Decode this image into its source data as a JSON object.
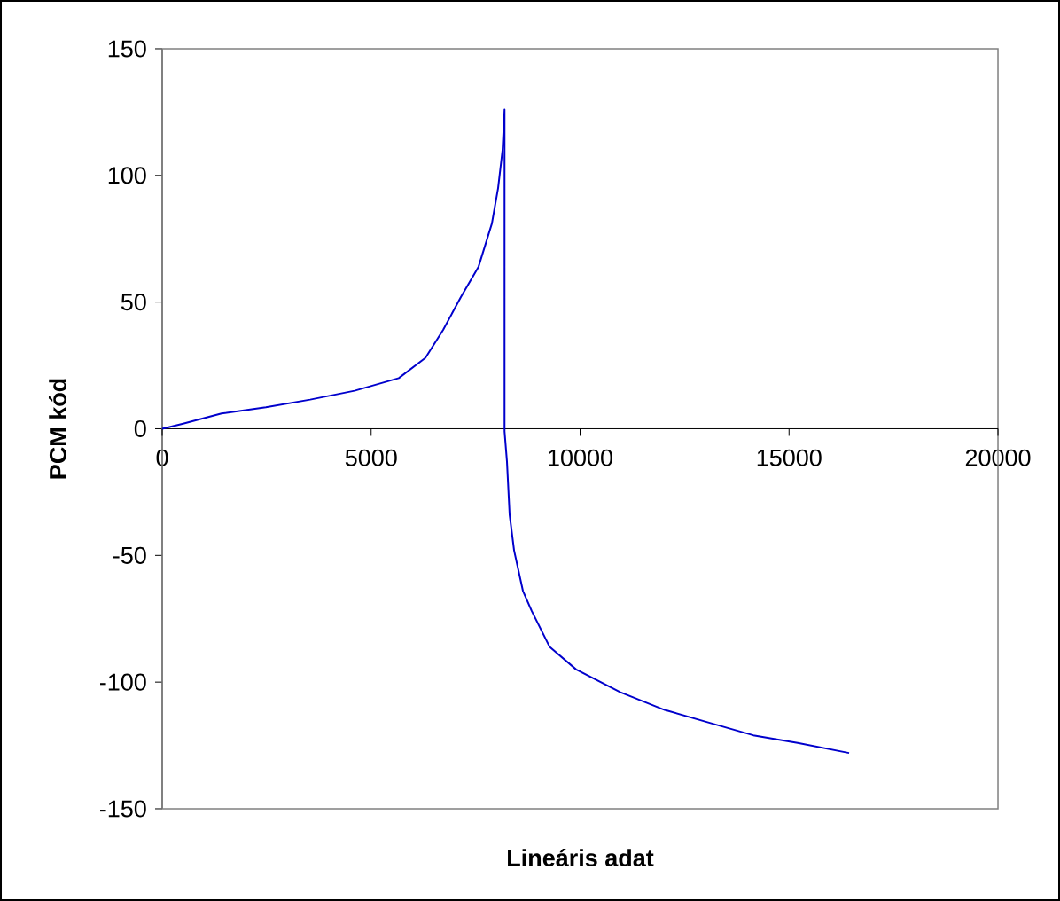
{
  "chart_data": {
    "type": "line",
    "xlabel": "Lineáris adat",
    "ylabel": "PCM kód",
    "series": [
      {
        "color": "#0000cc",
        "x": [
          0,
          500,
          1421,
          2481,
          3542,
          4602,
          5662,
          6300,
          6723,
          7147,
          7571,
          7889,
          8038,
          8144,
          8192,
          8192,
          8250,
          8314,
          8420,
          8632,
          8844,
          9268,
          9905,
          10965,
          12025,
          13085,
          14146,
          15206,
          16437
        ],
        "values": [
          0,
          2,
          6,
          8.5,
          11.5,
          15,
          20,
          28,
          39,
          52,
          64,
          81,
          95,
          110,
          126,
          -1,
          -13,
          -34,
          -48,
          -64,
          -72,
          -86,
          -95,
          -104,
          -111,
          -116,
          -121,
          -124,
          -128
        ]
      }
    ],
    "xlim": [
      0,
      20000
    ],
    "ylim": [
      -150,
      150
    ],
    "xticks": [
      0,
      5000,
      10000,
      15000,
      20000
    ],
    "yticks": [
      -150,
      -100,
      -50,
      0,
      50,
      100,
      150
    ],
    "grid": false,
    "marker": "none",
    "line_style": "solid"
  }
}
